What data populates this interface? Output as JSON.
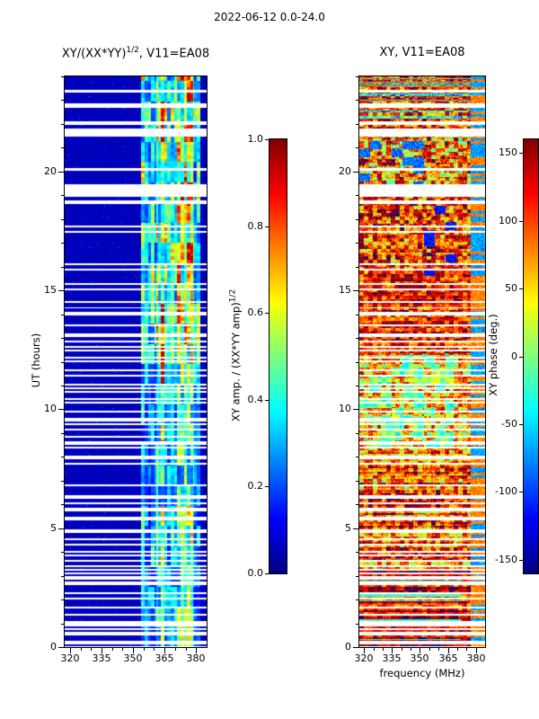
{
  "figure_title": "2022-06-12 0.0-24.0",
  "colors": {
    "background": "#ffffff",
    "axis": "#000000",
    "gap": "#ffffff"
  },
  "seed": 20220612,
  "chart_data": [
    {
      "type": "heatmap",
      "id": "coherence",
      "title": "XY/(XX*YY)^(1/2), V11=EA08",
      "title_main": "XY/(XX*YY)",
      "title_sup": "1/2",
      "title_tail": ", V11=EA08",
      "xlabel": "",
      "ylabel": "UT (hours)",
      "xlim": [
        317.5,
        385
      ],
      "ylim": [
        0,
        24
      ],
      "x_ticks": [
        320,
        335,
        350,
        365,
        380
      ],
      "x_minor_step": 5,
      "y_ticks": [
        0,
        5,
        10,
        15,
        20
      ],
      "y_minor_step": 1,
      "colormap": "jet",
      "value_range": [
        0,
        1
      ],
      "background_value_range": [
        0.02,
        0.1
      ],
      "bright_band": {
        "freq_range": [
          354,
          382
        ],
        "core": [
          361,
          379
        ],
        "value_range": [
          0.15,
          0.95
        ]
      },
      "description": "Cross-correlation amplitude coherence vs frequency (MHz) and UT (hours). Mostly dark blue (~0.0-0.1) from 317-354 MHz; bright multicolour band (cyan/green/yellow, ~0.2-0.9) between ~354-382 MHz; many horizontal white data-gap stripes, dense below 14 h UT; wide gaps near 14.0, 16.1, 19.0-19.45, 20.1, 21.45-21.7, 22.7 and 23.4 h."
    },
    {
      "type": "heatmap",
      "id": "phase",
      "title": "XY, V11=EA08",
      "xlabel": "frequency (MHz)",
      "ylabel": "",
      "xlim": [
        317.5,
        385
      ],
      "ylim": [
        0,
        24
      ],
      "x_ticks": [
        320,
        335,
        350,
        365,
        380
      ],
      "x_minor_step": 5,
      "y_ticks": [
        0,
        5,
        10,
        15,
        20
      ],
      "y_minor_step": 1,
      "colormap": "jet",
      "value_range": [
        -160,
        160
      ],
      "phase_regions": [
        {
          "from": 0,
          "to": 3.2,
          "mean": 125,
          "spread": 70
        },
        {
          "from": 3.2,
          "to": 8.4,
          "mean": 95,
          "spread": 110
        },
        {
          "from": 8.4,
          "to": 12.3,
          "mean": 60,
          "spread": 120
        },
        {
          "from": 12.3,
          "to": 16.0,
          "mean": 115,
          "spread": 90
        },
        {
          "from": 16.0,
          "to": 19.0,
          "mean": 100,
          "spread": 120
        },
        {
          "from": 19.0,
          "to": 21.5,
          "mean": 80,
          "spread": 140
        },
        {
          "from": 21.5,
          "to": 24.0,
          "mean": 110,
          "spread": 110
        }
      ],
      "description": "Cross-correlation phase (deg) vs frequency and time; noisy field dominated by +60..+180 deg (orange/red) with cyan/green patches near 0 deg (largest between ~8.4-12.3 h below 368 MHz), scattered dark-blue negative-phase blobs around 16-19 h, mixed cyan/yellow columns above ~378 MHz; same white data-gap rows as the left panel."
    }
  ],
  "time_gaps": {
    "wide": [
      [
        13.93,
        14.06
      ],
      [
        16.08,
        16.15
      ],
      [
        18.95,
        19.45
      ],
      [
        20.04,
        20.12
      ],
      [
        21.45,
        21.72
      ],
      [
        22.68,
        22.8
      ],
      [
        23.32,
        23.44
      ]
    ],
    "stripe_density": [
      {
        "from": 0,
        "to": 8,
        "density": 0.3
      },
      {
        "from": 8,
        "to": 14.3,
        "density": 0.36
      },
      {
        "from": 14.3,
        "to": 18.95,
        "density": 0.1
      },
      {
        "from": 19.45,
        "to": 21.45,
        "density": 0.05
      },
      {
        "from": 21.72,
        "to": 24,
        "density": 0.2
      }
    ],
    "default_density": 0.08
  },
  "colorbars": [
    {
      "label": "XY amp. / (XX*YY amp)^(1/2)",
      "label_main": "XY amp. / (XX*YY amp)",
      "label_sup": "1/2",
      "range": [
        0,
        1
      ],
      "tick_labels": [
        "0.0",
        "0.2",
        "0.4",
        "0.6",
        "0.8",
        "1.0"
      ],
      "tick_values": [
        0,
        0.2,
        0.4,
        0.6,
        0.8,
        1.0
      ],
      "colormap": "jet"
    },
    {
      "label": "XY phase (deg.)",
      "range": [
        -160,
        160
      ],
      "tick_labels": [
        "-150",
        "-100",
        "-50",
        "0",
        "50",
        "100",
        "150"
      ],
      "tick_values": [
        -150,
        -100,
        -50,
        0,
        50,
        100,
        150
      ],
      "colormap": "jet"
    }
  ]
}
